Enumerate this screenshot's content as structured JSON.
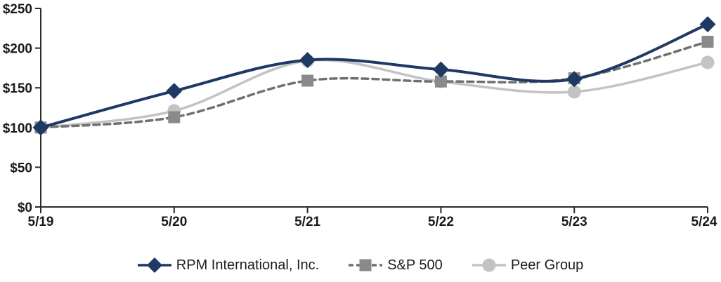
{
  "chart_data": {
    "type": "line",
    "title": "",
    "categories": [
      "5/19",
      "5/20",
      "5/21",
      "5/22",
      "5/23",
      "5/24"
    ],
    "series": [
      {
        "name": "RPM International, Inc.",
        "values": [
          100,
          146,
          185,
          173,
          161,
          230
        ],
        "color": "#1F3864",
        "line_color": "#1F3864",
        "line_style": "solid",
        "line_width": 4,
        "marker": "diamond"
      },
      {
        "name": "S&P 500",
        "values": [
          100,
          113,
          159,
          158,
          162,
          208
        ],
        "color": "#8A8A8A",
        "line_color": "#707070",
        "line_style": "dashed",
        "line_width": 3.5,
        "marker": "square"
      },
      {
        "name": "Peer Group",
        "values": [
          100,
          121,
          184,
          158,
          145,
          182
        ],
        "color": "#C3C3C3",
        "line_color": "#C3C3C3",
        "line_style": "solid",
        "line_width": 3.5,
        "marker": "circle"
      }
    ],
    "y_ticks": [
      0,
      50,
      100,
      150,
      200,
      250
    ],
    "y_tick_labels": [
      "$0",
      "$50",
      "$100",
      "$150",
      "$200",
      "$250"
    ],
    "ylim": [
      0,
      250
    ],
    "grid": false,
    "smoothed_lines": true,
    "legend_position": "bottom",
    "axis_color": "#2b2b2b",
    "label_color": "#1a1a1a"
  }
}
